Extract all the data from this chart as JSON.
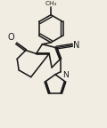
{
  "bg_color": "#f2ede3",
  "line_color": "#1a1a1a",
  "lw": 1.15,
  "figsize": [
    1.2,
    1.44
  ],
  "dpi": 100,
  "xlim": [
    0,
    120
  ],
  "ylim": [
    0,
    144
  ]
}
